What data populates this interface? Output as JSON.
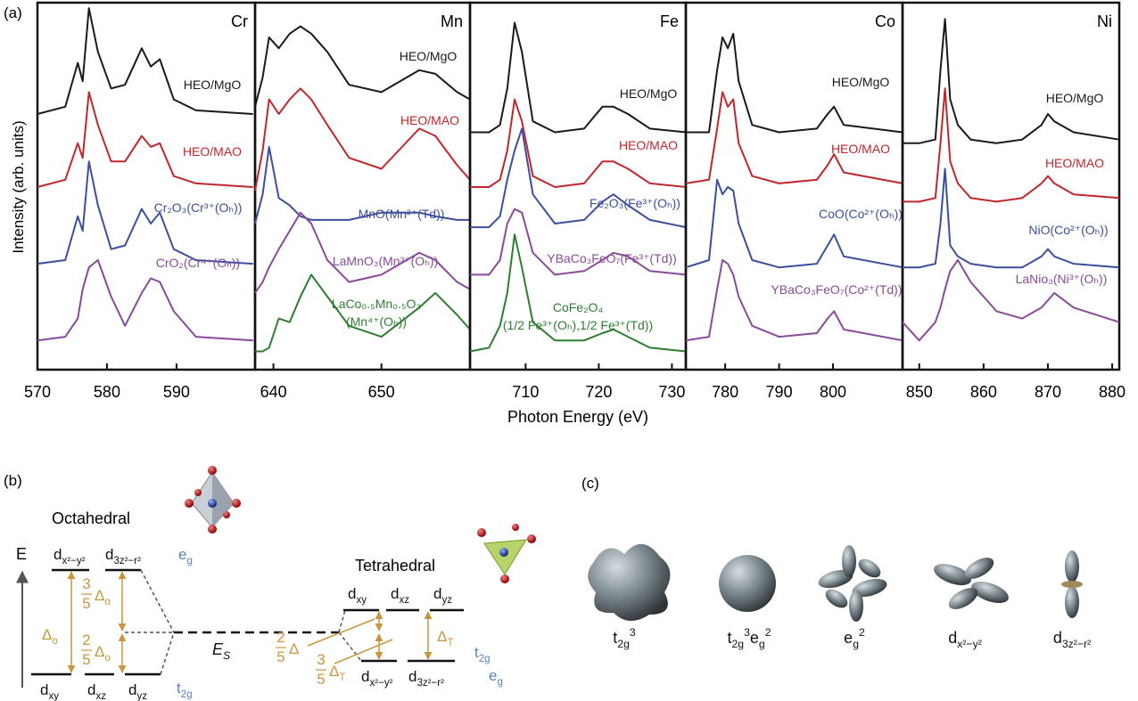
{
  "panel_a": {
    "label": "(a)",
    "y_label": "Intensity (arb. units)",
    "x_label": "Photon Energy (eV)"
  },
  "chart_data": [
    {
      "type": "line",
      "element": "Cr",
      "xlim": [
        570,
        601.3
      ],
      "xticks": [
        570,
        580,
        590
      ],
      "ylim": [
        0,
        100
      ],
      "x": [
        570,
        574,
        575.8,
        576.5,
        577.4,
        578.7,
        580.6,
        582.6,
        585,
        586.3,
        587.6,
        589.6,
        592.8,
        601
      ],
      "series": [
        {
          "name": "HEO/MgO",
          "color": "#1a1a1a",
          "values": [
            70,
            72,
            84,
            79,
            99,
            87,
            77,
            78,
            88,
            83,
            85,
            74,
            71,
            70
          ]
        },
        {
          "name": "HEO/MAO",
          "color": "#c0272d",
          "values": [
            50,
            52,
            62,
            58,
            76,
            67,
            57,
            57,
            64,
            61,
            62,
            53,
            51,
            50
          ]
        },
        {
          "name": "Cr₂O₃(Cr³⁺(Oₕ))",
          "color": "#3c4f9c",
          "values": [
            29,
            30,
            42,
            38,
            57,
            45,
            33,
            34,
            44,
            40,
            43,
            33,
            30,
            29
          ]
        },
        {
          "name": "CrO₂(Cr⁴⁺(Oₕ))",
          "color": "#8a4a9a",
          "values": [
            8,
            9,
            14,
            22,
            28,
            30,
            20,
            12,
            21,
            25,
            24,
            16,
            9,
            8
          ]
        }
      ]
    },
    {
      "type": "line",
      "element": "Mn",
      "xlim": [
        638.3,
        658.2
      ],
      "xticks": [
        640,
        650
      ],
      "ylim": [
        0,
        100
      ],
      "x": [
        638.3,
        639,
        639.6,
        640.5,
        641.5,
        642.5,
        643.5,
        645,
        647,
        650,
        653.5,
        655,
        657,
        658.2
      ],
      "series": [
        {
          "name": "HEO/MgO",
          "color": "#1a1a1a",
          "values": [
            72,
            80,
            91,
            88,
            92,
            94,
            92,
            87,
            78,
            76,
            82,
            81,
            76,
            74
          ]
        },
        {
          "name": "HEO/MAO",
          "color": "#c0272d",
          "values": [
            49,
            60,
            74,
            70,
            74,
            77,
            74,
            67,
            58,
            55,
            66,
            64,
            56,
            52
          ]
        },
        {
          "name": "MnO(Mn²⁺(Td))",
          "color": "#3c4f9c",
          "values": [
            40,
            48,
            61,
            47,
            45,
            42,
            41,
            41,
            41,
            43,
            43,
            42,
            41,
            41
          ]
        },
        {
          "name": "LaMnO₃(Mn³⁺(Oₕ))",
          "color": "#8a4a9a",
          "values": [
            21,
            24,
            28,
            33,
            38,
            43,
            40,
            30,
            24,
            26,
            32,
            30,
            24,
            22
          ]
        },
        {
          "name": [
            "LaCo₀.₅Mn₀.₅O₃",
            "(Mn⁴⁺(Oₕ))"
          ],
          "color": "#2e7d32",
          "values": [
            5,
            5,
            6,
            14,
            13,
            20,
            26,
            20,
            12,
            9,
            17,
            21,
            15,
            11
          ]
        }
      ]
    },
    {
      "type": "line",
      "element": "Fe",
      "xlim": [
        702.4,
        731.9
      ],
      "xticks": [
        710,
        720,
        730
      ],
      "ylim": [
        0,
        100
      ],
      "x": [
        702.4,
        705,
        706.5,
        707.5,
        708.5,
        709.5,
        711,
        714,
        718,
        720.5,
        722,
        724,
        727,
        731.9
      ],
      "series": [
        {
          "name": "HEO/MgO",
          "color": "#1a1a1a",
          "values": [
            65,
            65,
            67,
            77,
            95,
            87,
            68,
            65,
            66,
            72,
            72,
            70,
            66,
            65
          ]
        },
        {
          "name": "HEO/MAO",
          "color": "#c0272d",
          "values": [
            50,
            50,
            52,
            60,
            74,
            68,
            53,
            50,
            51,
            57,
            57,
            55,
            51,
            50
          ]
        },
        {
          "name": "Fe₂O₃(Fe³⁺(Oₕ))",
          "color": "#3c4f9c",
          "values": [
            39,
            39,
            42,
            52,
            60,
            66,
            48,
            40,
            41,
            46,
            48,
            45,
            41,
            39
          ]
        },
        {
          "name": "YBaCo₃FeO₇(Fe³⁺(Td))",
          "color": "#8a4a9a",
          "values": [
            26,
            26,
            30,
            40,
            44,
            43,
            32,
            26,
            27,
            30,
            32,
            31,
            27,
            26
          ]
        },
        {
          "name": [
            "CoFe₂O₄",
            "(1/2 Fe³⁺(Oₕ),1/2 Fe³⁺(Td))"
          ],
          "color": "#2e7d32",
          "values": [
            5,
            6,
            12,
            21,
            37,
            28,
            13,
            8,
            8,
            10,
            11,
            9,
            6,
            5
          ]
        }
      ]
    },
    {
      "type": "line",
      "element": "Co",
      "xlim": [
        772.7,
        812.9
      ],
      "xticks": [
        780,
        790,
        800
      ],
      "ylim": [
        0,
        100
      ],
      "x": [
        772.7,
        777,
        778.5,
        779.5,
        780.5,
        781.5,
        782.5,
        785,
        790,
        797,
        799,
        800.2,
        802,
        812.9
      ],
      "series": [
        {
          "name": "HEO/MgO",
          "color": "#1a1a1a",
          "values": [
            65,
            65,
            82,
            91,
            88,
            92,
            79,
            67,
            65,
            66,
            70,
            72,
            67,
            65
          ]
        },
        {
          "name": "HEO/MAO",
          "color": "#c0272d",
          "values": [
            51,
            52,
            66,
            76,
            72,
            74,
            62,
            53,
            51,
            52,
            56,
            59,
            54,
            51
          ]
        },
        {
          "name": "CoO(Co²⁺(Oₕ))",
          "color": "#3c4f9c",
          "values": [
            28,
            30,
            52,
            48,
            50,
            49,
            40,
            30,
            28,
            29,
            34,
            37,
            31,
            28
          ]
        },
        {
          "name": "YBaCo₃FeO₇(Co²⁺(Td))",
          "color": "#8a4a9a",
          "values": [
            8,
            9,
            22,
            30,
            29,
            26,
            20,
            12,
            9,
            10,
            14,
            16,
            11,
            8
          ]
        }
      ]
    },
    {
      "type": "line",
      "element": "Ni",
      "xlim": [
        847.4,
        881.1
      ],
      "xticks": [
        850,
        860,
        870,
        880
      ],
      "ylim": [
        0,
        100
      ],
      "x": [
        847.4,
        850,
        852.5,
        853.3,
        854,
        854.8,
        856,
        858,
        862,
        866,
        869,
        870,
        871,
        874,
        881.1
      ],
      "series": [
        {
          "name": "HEO/MgO",
          "color": "#1a1a1a",
          "values": [
            62,
            62,
            63,
            82,
            96,
            74,
            67,
            63,
            62,
            63,
            67,
            70,
            68,
            65,
            63
          ]
        },
        {
          "name": "HEO/MAO",
          "color": "#c0272d",
          "values": [
            46,
            46,
            47,
            62,
            77,
            57,
            51,
            47,
            46,
            47,
            51,
            53,
            51,
            48,
            47
          ]
        },
        {
          "name": "NiO(Co²⁺(Oₕ))",
          "color": "#3c4f9c",
          "values": [
            28,
            28,
            29,
            40,
            55,
            34,
            31,
            29,
            28,
            28,
            31,
            33,
            31,
            29,
            28
          ]
        },
        {
          "name": "LaNio₃(Ni³⁺(Oₕ))",
          "color": "#8a4a9a",
          "values": [
            13,
            8,
            13,
            17,
            22,
            27,
            30,
            24,
            16,
            14,
            17,
            19,
            21,
            17,
            13
          ]
        }
      ]
    }
  ],
  "panel_b": {
    "label": "(b)",
    "energy_axis": "E",
    "octahedral": "Octahedral",
    "tetrahedral": "Tetrahedral",
    "oct_eg_levels": [
      {
        "base": "d",
        "sub": "x²−y²"
      },
      {
        "base": "d",
        "sub": "3z²−r²"
      }
    ],
    "oct_t2g_levels": [
      {
        "base": "d",
        "sub": "xy"
      },
      {
        "base": "d",
        "sub": "xz"
      },
      {
        "base": "d",
        "sub": "yz"
      }
    ],
    "oct_eg": {
      "base": "e",
      "sub": "g"
    },
    "oct_t2g": {
      "base": "t",
      "sub": "2g"
    },
    "delta_o": {
      "base": "Δ",
      "sub": "o"
    },
    "upper_shift": {
      "num": "3",
      "den": "5",
      "base": "Δ",
      "sub": "o"
    },
    "lower_shift": {
      "num": "2",
      "den": "5",
      "base": "Δ",
      "sub": "o"
    },
    "stabilization": {
      "base": "E",
      "sub": "S"
    },
    "tet_t2g_levels": [
      {
        "base": "d",
        "sub": "xy"
      },
      {
        "base": "d",
        "sub": "xz"
      },
      {
        "base": "d",
        "sub": "yz"
      }
    ],
    "tet_eg_levels": [
      {
        "base": "d",
        "sub": "x²−y²"
      },
      {
        "base": "d",
        "sub": "3z²−r²"
      }
    ],
    "tet_t2g": {
      "base": "t",
      "sub": "2g"
    },
    "tet_eg": {
      "base": "e",
      "sub": "g"
    },
    "delta_t": {
      "base": "Δ",
      "sub": "T"
    },
    "tet_upper_shift": {
      "num": "2",
      "den": "5",
      "base": "Δ"
    },
    "tet_lower_shift": {
      "num": "3",
      "den": "5",
      "base": "Δ",
      "sub": "T"
    }
  },
  "panel_c": {
    "label": "(c)",
    "orbitals": [
      {
        "label": [
          {
            "base": "t",
            "sub": "2g",
            "sup": "3"
          }
        ]
      },
      {
        "label": [
          {
            "base": "t",
            "sub": "2g",
            "sup": "3"
          },
          {
            "base": "e",
            "sub": "g",
            "sup": "2"
          }
        ]
      },
      {
        "label": [
          {
            "base": "e",
            "sub": "g",
            "sup": "2"
          }
        ]
      },
      {
        "label": [
          {
            "base": "d",
            "sub": "x²−y²"
          }
        ]
      },
      {
        "label": [
          {
            "base": "d",
            "sub": "3z²−r²"
          }
        ]
      }
    ]
  }
}
